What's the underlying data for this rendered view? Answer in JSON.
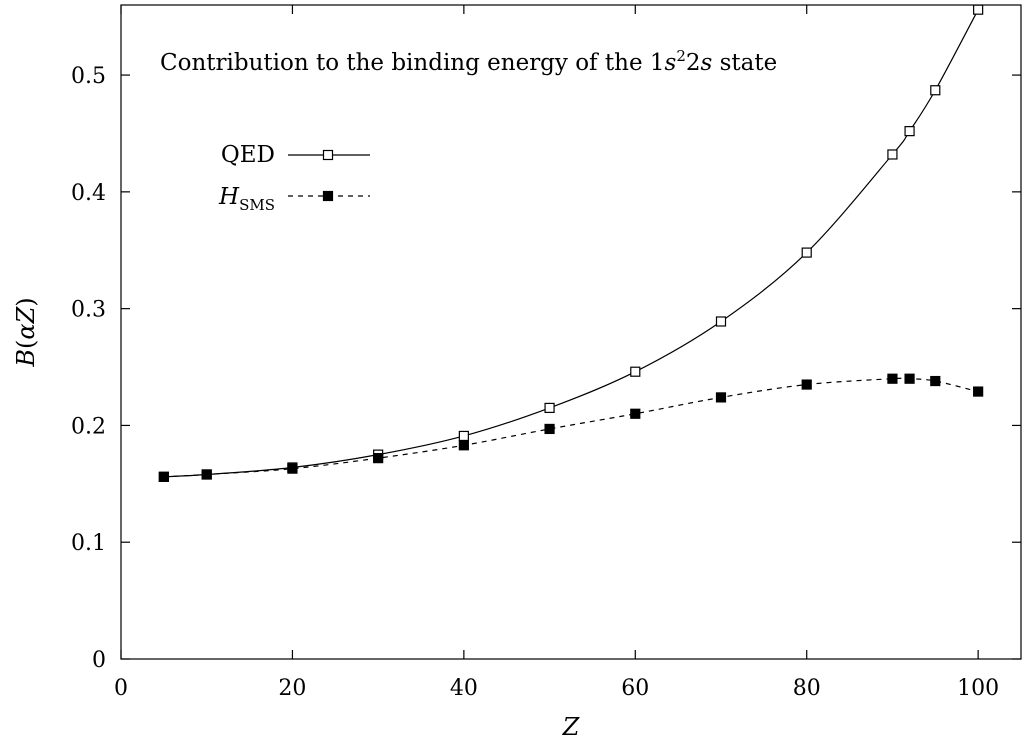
{
  "chart_data": {
    "type": "line",
    "title": "Contribution to the binding energy of the 1s²2s state",
    "title_parts": {
      "prefix": "Contribution to the binding energy of the 1",
      "s1": "s",
      "sup": "2",
      "mid": "2",
      "s2": "s",
      "suffix": " state"
    },
    "xlabel": "Z",
    "ylabel": "B(αZ)",
    "ylabel_parts": {
      "b": "B",
      "open": "(",
      "inner": "αZ",
      "close": ")"
    },
    "xlim": [
      0,
      105
    ],
    "ylim": [
      0,
      0.56
    ],
    "x_ticks": [
      0,
      20,
      40,
      60,
      80,
      100
    ],
    "y_ticks": [
      0,
      0.1,
      0.2,
      0.3,
      0.4,
      0.5
    ],
    "y_tick_labels": [
      "0",
      "0.1",
      "0.2",
      "0.3",
      "0.4",
      "0.5"
    ],
    "grid": false,
    "legend_position": "top-left",
    "series": [
      {
        "name": "QED",
        "marker": "open-square",
        "line": "solid",
        "x": [
          5,
          10,
          20,
          30,
          40,
          50,
          60,
          70,
          80,
          90,
          92,
          95,
          100
        ],
        "y": [
          0.156,
          0.158,
          0.164,
          0.175,
          0.191,
          0.215,
          0.246,
          0.289,
          0.348,
          0.432,
          0.452,
          0.487,
          0.556
        ]
      },
      {
        "name": "H_SMS",
        "name_parts": {
          "main": "H",
          "sub": "SMS"
        },
        "marker": "filled-square",
        "line": "dashed",
        "x": [
          5,
          10,
          20,
          30,
          40,
          50,
          60,
          70,
          80,
          90,
          92,
          95,
          100
        ],
        "y": [
          0.156,
          0.158,
          0.163,
          0.172,
          0.183,
          0.197,
          0.21,
          0.224,
          0.235,
          0.24,
          0.24,
          0.238,
          0.229
        ]
      }
    ]
  }
}
